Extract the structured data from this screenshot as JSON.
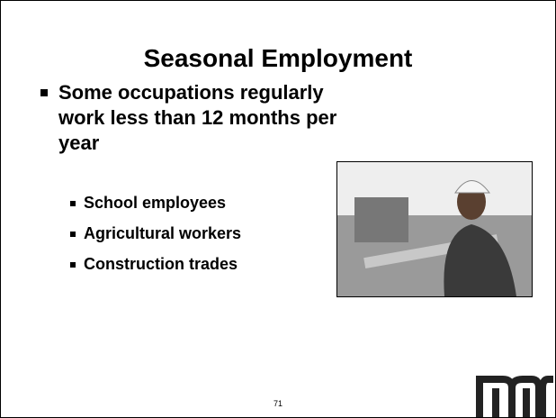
{
  "slide": {
    "title": "Seasonal Employment",
    "bullets": [
      {
        "text": "Some occupations regularly work less than 12 months per year",
        "subbullets": [
          "School employees",
          "Agricultural workers",
          "Construction trades"
        ]
      }
    ],
    "page_number": "71"
  }
}
